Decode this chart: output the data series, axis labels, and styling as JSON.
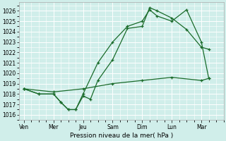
{
  "xlabel": "Pression niveau de la mer( hPa )",
  "ylim": [
    1015.5,
    1026.8
  ],
  "yticks": [
    1016,
    1017,
    1018,
    1019,
    1020,
    1021,
    1022,
    1023,
    1024,
    1025,
    1026
  ],
  "day_labels": [
    "Ven",
    "Mer",
    "Jeu",
    "Sam",
    "Dim",
    "Lun",
    "Mar"
  ],
  "day_positions": [
    0,
    24,
    48,
    72,
    96,
    120,
    144
  ],
  "xlim": [
    -4,
    162
  ],
  "bg_color": "#d0eeea",
  "grid_color": "#ffffff",
  "line_color": "#1a6b2a",
  "series1_x": [
    0,
    12,
    24,
    30,
    36,
    42,
    48,
    54,
    60,
    72,
    84,
    96,
    102,
    108,
    120,
    132,
    144,
    150
  ],
  "series1_y": [
    1018.5,
    1018.0,
    1018.0,
    1017.2,
    1016.5,
    1016.5,
    1017.8,
    1017.5,
    1019.3,
    1021.3,
    1024.3,
    1024.5,
    1026.3,
    1026.0,
    1025.3,
    1024.2,
    1022.5,
    1022.3
  ],
  "series2_x": [
    0,
    12,
    24,
    30,
    36,
    42,
    48,
    60,
    72,
    84,
    96,
    102,
    108,
    120,
    132,
    144,
    150
  ],
  "series2_y": [
    1018.5,
    1018.0,
    1018.0,
    1017.2,
    1016.5,
    1016.5,
    1018.0,
    1021.0,
    1023.0,
    1024.5,
    1025.0,
    1026.1,
    1025.5,
    1025.0,
    1026.1,
    1023.0,
    1019.5
  ],
  "series3_x": [
    0,
    24,
    48,
    72,
    96,
    120,
    144,
    150
  ],
  "series3_y": [
    1018.5,
    1018.2,
    1018.5,
    1019.0,
    1019.3,
    1019.6,
    1019.3,
    1019.5
  ]
}
